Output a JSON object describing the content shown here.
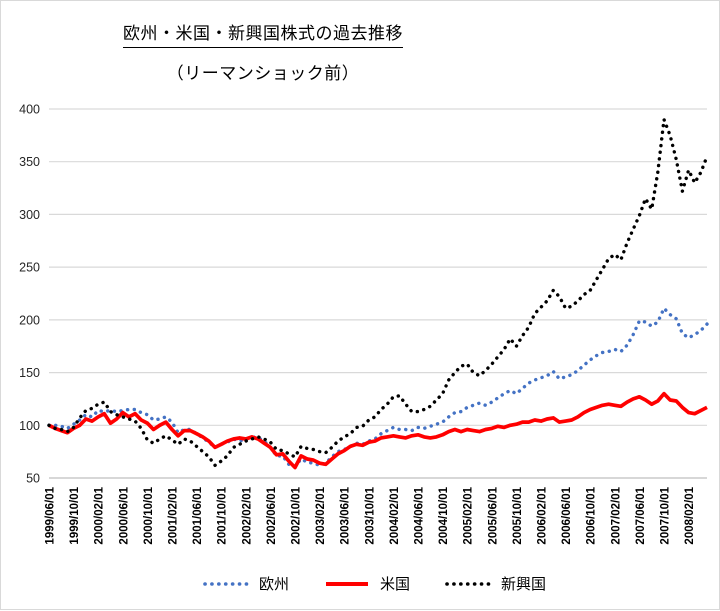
{
  "title": "欧州・米国・新興国株式の過去推移",
  "subtitle": "（リーマンショック前）",
  "legend": [
    {
      "label": "欧州",
      "color": "#4472c4",
      "style": "dotted"
    },
    {
      "label": "米国",
      "color": "#ff0000",
      "style": "solid"
    },
    {
      "label": "新興国",
      "color": "#000000",
      "style": "dotted"
    }
  ],
  "colors": {
    "grid": "#d9d9d9",
    "axis": "#bfbfbf",
    "y_tick_text": "#262626",
    "x_tick_text": "#000000"
  },
  "chart_data": {
    "type": "line",
    "title": "欧州・米国・新興国株式の過去推移",
    "subtitle": "（リーマンショック前）",
    "xlabel": "",
    "ylabel": "",
    "ylim": [
      50,
      400
    ],
    "y_ticks": [
      50,
      100,
      150,
      200,
      250,
      300,
      350,
      400
    ],
    "grid": true,
    "legend_position": "bottom",
    "x_frequency": "monthly",
    "x_start": "1999/06/01",
    "x_end": "2008/05/01",
    "x_tick_every": 4,
    "x_tick_labels": [
      "1999/06/01",
      "1999/10/01",
      "2000/02/01",
      "2000/06/01",
      "2000/10/01",
      "2001/02/01",
      "2001/06/01",
      "2001/10/01",
      "2002/02/01",
      "2002/06/01",
      "2002/10/01",
      "2003/02/01",
      "2003/06/01",
      "2003/10/01",
      "2004/02/01",
      "2004/06/01",
      "2004/10/01",
      "2005/02/01",
      "2005/06/01",
      "2005/10/01",
      "2006/02/01",
      "2006/06/01",
      "2006/10/01",
      "2007/02/01",
      "2007/06/01",
      "2007/10/01",
      "2008/02/01"
    ],
    "series": [
      {
        "name": "欧州",
        "color": "#4472c4",
        "line_style": "dotted",
        "values": [
          100,
          100,
          99,
          97,
          101,
          105,
          110,
          108,
          114,
          113,
          114,
          113,
          114,
          115,
          115,
          112,
          110,
          105,
          106,
          108,
          103,
          93,
          96,
          96,
          92,
          88,
          84,
          79,
          82,
          84,
          87,
          85,
          87,
          89,
          88,
          85,
          79,
          71,
          71,
          63,
          61,
          68,
          65,
          64,
          62,
          64,
          70,
          75,
          77,
          80,
          83,
          82,
          85,
          87,
          92,
          95,
          98,
          96,
          96,
          95,
          98,
          97,
          99,
          101,
          103,
          108,
          112,
          113,
          117,
          119,
          121,
          119,
          122,
          126,
          130,
          133,
          130,
          135,
          140,
          143,
          145,
          147,
          151,
          144,
          146,
          148,
          152,
          157,
          162,
          166,
          169,
          170,
          172,
          170,
          176,
          186,
          199,
          198,
          194,
          198,
          211,
          205,
          201,
          187,
          183,
          186,
          190,
          196
        ]
      },
      {
        "name": "米国",
        "color": "#ff0000",
        "line_style": "solid",
        "values": [
          100,
          97,
          95,
          93,
          97,
          100,
          106,
          104,
          108,
          111,
          102,
          106,
          112,
          108,
          111,
          105,
          102,
          96,
          100,
          103,
          96,
          90,
          95,
          95,
          92,
          89,
          85,
          79,
          82,
          85,
          87,
          88,
          87,
          89,
          87,
          83,
          79,
          72,
          73,
          66,
          60,
          71,
          68,
          67,
          64,
          63,
          68,
          73,
          76,
          80,
          82,
          81,
          84,
          85,
          88,
          89,
          90,
          89,
          88,
          90,
          91,
          89,
          88,
          89,
          91,
          94,
          96,
          94,
          96,
          95,
          94,
          96,
          97,
          99,
          98,
          100,
          101,
          103,
          103,
          105,
          104,
          106,
          107,
          103,
          104,
          105,
          108,
          112,
          115,
          117,
          119,
          120,
          119,
          118,
          122,
          125,
          127,
          124,
          120,
          123,
          130,
          124,
          123,
          117,
          112,
          111,
          114,
          117
        ]
      },
      {
        "name": "新興国",
        "color": "#000000",
        "line_style": "dotted",
        "values": [
          100,
          97,
          96,
          94,
          98,
          107,
          114,
          116,
          120,
          122,
          113,
          110,
          108,
          106,
          104,
          97,
          86,
          83,
          87,
          90,
          86,
          82,
          87,
          85,
          80,
          75,
          70,
          62,
          66,
          71,
          79,
          82,
          85,
          87,
          89,
          87,
          84,
          77,
          76,
          73,
          70,
          80,
          78,
          77,
          75,
          74,
          79,
          85,
          89,
          92,
          98,
          99,
          105,
          108,
          115,
          120,
          127,
          128,
          120,
          113,
          113,
          115,
          118,
          124,
          130,
          143,
          150,
          156,
          158,
          150,
          147,
          152,
          158,
          165,
          172,
          182,
          175,
          185,
          193,
          206,
          212,
          218,
          228,
          222,
          211,
          213,
          218,
          224,
          228,
          238,
          248,
          258,
          262,
          257,
          273,
          286,
          299,
          315,
          305,
          340,
          390,
          375,
          352,
          322,
          342,
          330,
          340,
          355
        ]
      }
    ]
  }
}
